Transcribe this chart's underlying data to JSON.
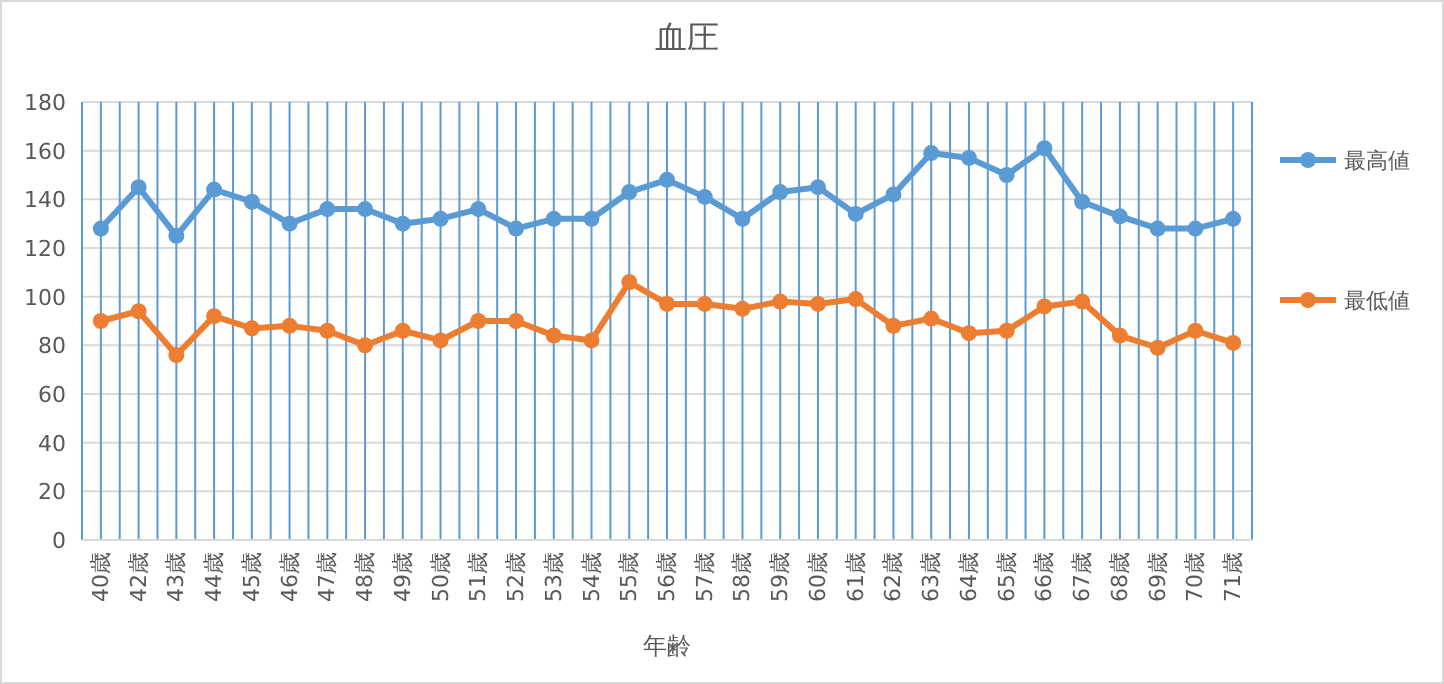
{
  "chart_data": {
    "type": "line",
    "title": "血圧",
    "xlabel": "年齢",
    "categories": [
      "40歳",
      "42歳",
      "43歳",
      "44歳",
      "45歳",
      "46歳",
      "47歳",
      "48歳",
      "49歳",
      "50歳",
      "51歳",
      "52歳",
      "53歳",
      "54歳",
      "55歳",
      "56歳",
      "57歳",
      "58歳",
      "59歳",
      "60歳",
      "61歳",
      "62歳",
      "63歳",
      "64歳",
      "65歳",
      "66歳",
      "67歳",
      "68歳",
      "69歳",
      "70歳",
      "71歳"
    ],
    "series": [
      {
        "name": "最高値",
        "color": "#5b9bd5",
        "values": [
          128,
          145,
          125,
          144,
          139,
          130,
          136,
          136,
          130,
          132,
          136,
          128,
          132,
          132,
          143,
          148,
          141,
          132,
          143,
          145,
          134,
          142,
          159,
          157,
          150,
          161,
          139,
          133,
          128,
          128,
          132
        ]
      },
      {
        "name": "最低値",
        "color": "#ed7d31",
        "values": [
          90,
          94,
          76,
          92,
          87,
          88,
          86,
          80,
          86,
          82,
          90,
          90,
          84,
          82,
          106,
          97,
          97,
          95,
          98,
          97,
          99,
          88,
          91,
          85,
          86,
          96,
          98,
          84,
          79,
          86,
          81
        ]
      }
    ],
    "ylim": [
      0,
      180
    ],
    "yticks": [
      0,
      20,
      40,
      60,
      80,
      100,
      120,
      140,
      160,
      180
    ],
    "grid": true,
    "legend": "right",
    "marker": "circle",
    "line_style": "solid"
  }
}
